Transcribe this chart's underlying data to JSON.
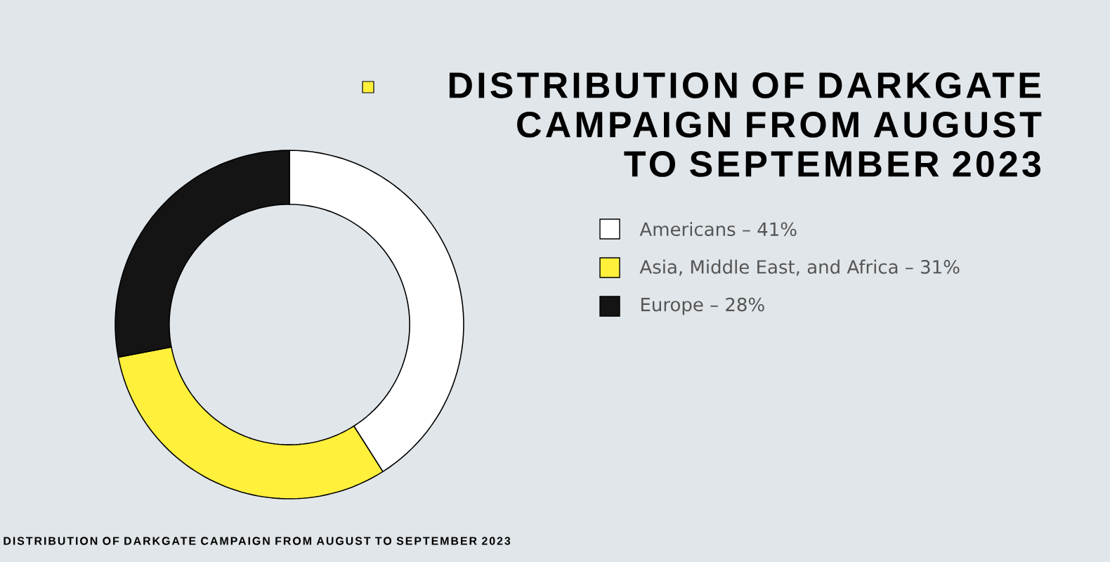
{
  "chart_data": {
    "type": "donut",
    "title": "DISTRIBUTION OF DARKGATE CAMPAIGN FROM AUGUST TO SEPTEMBER 2023",
    "categories": [
      "Americans – 41%",
      "Asia, Middle East, and Africa – 31%",
      "Europe – 28%"
    ],
    "values": [
      41,
      31,
      28
    ],
    "colors": [
      "#ffffff",
      "#fff03c",
      "#141414"
    ],
    "legend": "right",
    "annotations": [
      "DISTRIBUTION OF DARKGATE CAMPAIGN FROM AUGUST TO SEPTEMBER 2023"
    ]
  }
}
